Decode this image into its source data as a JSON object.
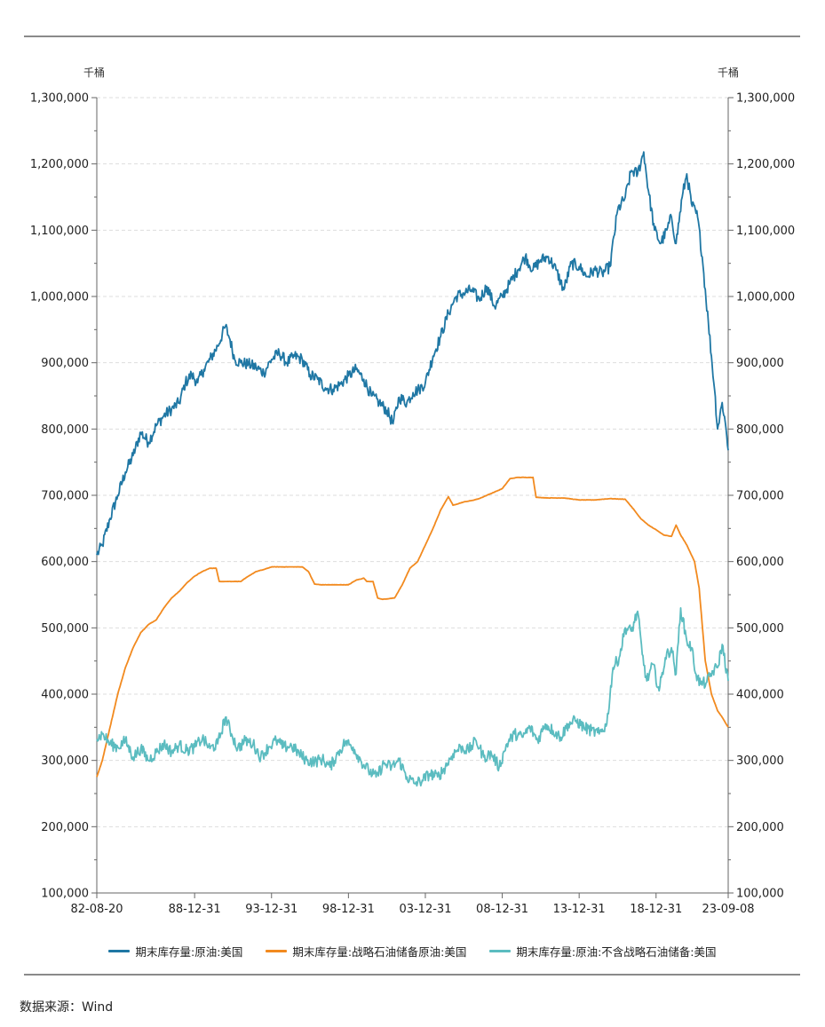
{
  "source_label": "数据来源：Wind",
  "colors": {
    "crude_total": "#1f77a4",
    "spr": "#f28a1f",
    "ex_spr": "#5bbcc0",
    "grid": "#dddddd",
    "axis": "#666666"
  },
  "chart_data": {
    "type": "line",
    "title": "",
    "left_unit": "千桶",
    "right_unit": "千桶",
    "ylim": [
      100000,
      1300000
    ],
    "y_ticks": [
      100000,
      200000,
      300000,
      400000,
      500000,
      600000,
      700000,
      800000,
      900000,
      1000000,
      1100000,
      1200000,
      1300000
    ],
    "y_tick_labels": [
      "100,000",
      "200,000",
      "300,000",
      "400,000",
      "500,000",
      "600,000",
      "700,000",
      "800,000",
      "900,000",
      "1,000,000",
      "1,100,000",
      "1,200,000",
      "1,300,000"
    ],
    "x_range": [
      1982.64,
      2023.69
    ],
    "x_ticks": [
      {
        "label": "82-08-20",
        "year": 1982.64
      },
      {
        "label": "88-12-31",
        "year": 1989.0
      },
      {
        "label": "93-12-31",
        "year": 1994.0
      },
      {
        "label": "98-12-31",
        "year": 1999.0
      },
      {
        "label": "03-12-31",
        "year": 2004.0
      },
      {
        "label": "08-12-31",
        "year": 2009.0
      },
      {
        "label": "13-12-31",
        "year": 2014.0
      },
      {
        "label": "18-12-31",
        "year": 2019.0
      },
      {
        "label": "23-09-08",
        "year": 2023.69
      }
    ],
    "grid": true,
    "legend_position": "bottom",
    "series": [
      {
        "name": "期末库存量:原油:美国",
        "color": "#1f77a4",
        "points": [
          [
            1982.64,
            610000
          ],
          [
            1983.0,
            625000
          ],
          [
            1983.5,
            665000
          ],
          [
            1984.0,
            700000
          ],
          [
            1984.5,
            735000
          ],
          [
            1985.0,
            760000
          ],
          [
            1985.5,
            795000
          ],
          [
            1986.0,
            780000
          ],
          [
            1986.5,
            805000
          ],
          [
            1987.0,
            820000
          ],
          [
            1987.5,
            830000
          ],
          [
            1988.0,
            840000
          ],
          [
            1988.4,
            870000
          ],
          [
            1988.8,
            882000
          ],
          [
            1989.2,
            870000
          ],
          [
            1989.6,
            890000
          ],
          [
            1990.0,
            905000
          ],
          [
            1990.5,
            925000
          ],
          [
            1991.0,
            955000
          ],
          [
            1991.3,
            935000
          ],
          [
            1991.6,
            905000
          ],
          [
            1992.0,
            900000
          ],
          [
            1992.5,
            898000
          ],
          [
            1993.0,
            893000
          ],
          [
            1993.5,
            885000
          ],
          [
            1994.0,
            905000
          ],
          [
            1994.5,
            915000
          ],
          [
            1995.0,
            900000
          ],
          [
            1995.5,
            910000
          ],
          [
            1996.0,
            905000
          ],
          [
            1996.5,
            882000
          ],
          [
            1997.0,
            875000
          ],
          [
            1997.5,
            862000
          ],
          [
            1998.0,
            860000
          ],
          [
            1998.5,
            868000
          ],
          [
            1999.0,
            880000
          ],
          [
            1999.5,
            890000
          ],
          [
            2000.0,
            875000
          ],
          [
            2000.5,
            850000
          ],
          [
            2001.0,
            840000
          ],
          [
            2001.5,
            828000
          ],
          [
            2001.9,
            808000
          ],
          [
            2002.3,
            848000
          ],
          [
            2002.8,
            840000
          ],
          [
            2003.2,
            855000
          ],
          [
            2003.6,
            860000
          ],
          [
            2004.0,
            870000
          ],
          [
            2004.5,
            910000
          ],
          [
            2005.0,
            940000
          ],
          [
            2005.5,
            975000
          ],
          [
            2006.0,
            1000000
          ],
          [
            2006.5,
            1005000
          ],
          [
            2007.0,
            1010000
          ],
          [
            2007.5,
            995000
          ],
          [
            2008.0,
            1015000
          ],
          [
            2008.5,
            985000
          ],
          [
            2009.0,
            1000000
          ],
          [
            2009.5,
            1020000
          ],
          [
            2010.0,
            1040000
          ],
          [
            2010.5,
            1060000
          ],
          [
            2011.0,
            1040000
          ],
          [
            2011.5,
            1055000
          ],
          [
            2012.0,
            1060000
          ],
          [
            2012.5,
            1040000
          ],
          [
            2013.0,
            1010000
          ],
          [
            2013.5,
            1050000
          ],
          [
            2014.0,
            1045000
          ],
          [
            2014.5,
            1030000
          ],
          [
            2015.0,
            1040000
          ],
          [
            2015.5,
            1035000
          ],
          [
            2016.0,
            1045000
          ],
          [
            2016.5,
            1130000
          ],
          [
            2017.0,
            1150000
          ],
          [
            2017.4,
            1190000
          ],
          [
            2017.8,
            1185000
          ],
          [
            2018.2,
            1218000
          ],
          [
            2018.5,
            1160000
          ],
          [
            2018.9,
            1100000
          ],
          [
            2019.3,
            1080000
          ],
          [
            2019.7,
            1100000
          ],
          [
            2020.0,
            1120000
          ],
          [
            2020.3,
            1080000
          ],
          [
            2020.7,
            1150000
          ],
          [
            2021.0,
            1185000
          ],
          [
            2021.3,
            1140000
          ],
          [
            2021.7,
            1120000
          ],
          [
            2022.0,
            1060000
          ],
          [
            2022.4,
            960000
          ],
          [
            2022.8,
            860000
          ],
          [
            2023.0,
            800000
          ],
          [
            2023.3,
            840000
          ],
          [
            2023.5,
            810000
          ],
          [
            2023.69,
            768000
          ]
        ]
      },
      {
        "name": "期末库存量:战略石油储备原油:美国",
        "color": "#f28a1f",
        "points": [
          [
            1982.64,
            275000
          ],
          [
            1983.0,
            300000
          ],
          [
            1983.5,
            350000
          ],
          [
            1984.0,
            400000
          ],
          [
            1984.5,
            440000
          ],
          [
            1985.0,
            470000
          ],
          [
            1985.5,
            493000
          ],
          [
            1986.0,
            505000
          ],
          [
            1986.5,
            512000
          ],
          [
            1987.0,
            530000
          ],
          [
            1987.5,
            545000
          ],
          [
            1988.0,
            555000
          ],
          [
            1988.5,
            568000
          ],
          [
            1989.0,
            578000
          ],
          [
            1989.5,
            585000
          ],
          [
            1990.0,
            590000
          ],
          [
            1990.4,
            590000
          ],
          [
            1990.6,
            570000
          ],
          [
            1991.0,
            570000
          ],
          [
            1992.0,
            570000
          ],
          [
            1992.5,
            578000
          ],
          [
            1993.0,
            585000
          ],
          [
            1993.5,
            588000
          ],
          [
            1994.0,
            592000
          ],
          [
            1995.0,
            592000
          ],
          [
            1996.0,
            592000
          ],
          [
            1996.4,
            585000
          ],
          [
            1996.8,
            566000
          ],
          [
            1997.2,
            565000
          ],
          [
            1998.0,
            565000
          ],
          [
            1999.0,
            565000
          ],
          [
            1999.5,
            572000
          ],
          [
            2000.0,
            575000
          ],
          [
            2000.2,
            570000
          ],
          [
            2000.6,
            570000
          ],
          [
            2000.9,
            545000
          ],
          [
            2001.2,
            543000
          ],
          [
            2002.0,
            545000
          ],
          [
            2002.5,
            565000
          ],
          [
            2003.0,
            590000
          ],
          [
            2003.5,
            600000
          ],
          [
            2004.0,
            625000
          ],
          [
            2004.5,
            650000
          ],
          [
            2005.0,
            678000
          ],
          [
            2005.5,
            698000
          ],
          [
            2005.8,
            685000
          ],
          [
            2006.5,
            690000
          ],
          [
            2007.0,
            692000
          ],
          [
            2007.5,
            695000
          ],
          [
            2008.0,
            700000
          ],
          [
            2008.5,
            705000
          ],
          [
            2009.0,
            710000
          ],
          [
            2009.5,
            725000
          ],
          [
            2010.0,
            727000
          ],
          [
            2011.0,
            727000
          ],
          [
            2011.2,
            697000
          ],
          [
            2012.0,
            696000
          ],
          [
            2013.0,
            696000
          ],
          [
            2014.0,
            693000
          ],
          [
            2015.0,
            693000
          ],
          [
            2016.0,
            695000
          ],
          [
            2017.0,
            694000
          ],
          [
            2017.5,
            680000
          ],
          [
            2018.0,
            665000
          ],
          [
            2018.5,
            655000
          ],
          [
            2019.0,
            648000
          ],
          [
            2019.5,
            640000
          ],
          [
            2020.0,
            638000
          ],
          [
            2020.3,
            655000
          ],
          [
            2020.6,
            640000
          ],
          [
            2021.0,
            625000
          ],
          [
            2021.5,
            600000
          ],
          [
            2021.8,
            560000
          ],
          [
            2022.2,
            450000
          ],
          [
            2022.6,
            400000
          ],
          [
            2023.0,
            375000
          ],
          [
            2023.3,
            365000
          ],
          [
            2023.69,
            350000
          ]
        ]
      },
      {
        "name": "期末库存量:原油:不含战略石油储备:美国",
        "color": "#5bbcc0",
        "points": [
          [
            1982.64,
            332000
          ],
          [
            1983.0,
            340000
          ],
          [
            1983.5,
            325000
          ],
          [
            1984.0,
            320000
          ],
          [
            1984.5,
            330000
          ],
          [
            1985.0,
            305000
          ],
          [
            1985.5,
            318000
          ],
          [
            1986.0,
            300000
          ],
          [
            1986.5,
            312000
          ],
          [
            1987.0,
            325000
          ],
          [
            1987.5,
            313000
          ],
          [
            1988.0,
            323000
          ],
          [
            1988.5,
            315000
          ],
          [
            1989.0,
            320000
          ],
          [
            1989.5,
            333000
          ],
          [
            1990.0,
            318000
          ],
          [
            1990.5,
            325000
          ],
          [
            1991.0,
            365000
          ],
          [
            1991.4,
            340000
          ],
          [
            1991.8,
            318000
          ],
          [
            1992.3,
            330000
          ],
          [
            1992.8,
            325000
          ],
          [
            1993.3,
            305000
          ],
          [
            1993.8,
            320000
          ],
          [
            1994.3,
            330000
          ],
          [
            1994.8,
            320000
          ],
          [
            1995.3,
            322000
          ],
          [
            1995.8,
            310000
          ],
          [
            1996.3,
            300000
          ],
          [
            1996.8,
            298000
          ],
          [
            1997.3,
            302000
          ],
          [
            1997.8,
            290000
          ],
          [
            1998.3,
            310000
          ],
          [
            1998.8,
            328000
          ],
          [
            1999.3,
            320000
          ],
          [
            1999.8,
            300000
          ],
          [
            2000.3,
            285000
          ],
          [
            2000.8,
            275000
          ],
          [
            2001.3,
            295000
          ],
          [
            2001.8,
            290000
          ],
          [
            2002.3,
            300000
          ],
          [
            2002.8,
            275000
          ],
          [
            2003.3,
            265000
          ],
          [
            2003.8,
            270000
          ],
          [
            2004.3,
            280000
          ],
          [
            2004.8,
            275000
          ],
          [
            2005.3,
            290000
          ],
          [
            2005.8,
            310000
          ],
          [
            2006.3,
            320000
          ],
          [
            2006.8,
            315000
          ],
          [
            2007.3,
            330000
          ],
          [
            2007.8,
            305000
          ],
          [
            2008.3,
            310000
          ],
          [
            2008.8,
            290000
          ],
          [
            2009.3,
            325000
          ],
          [
            2009.8,
            340000
          ],
          [
            2010.3,
            335000
          ],
          [
            2010.8,
            350000
          ],
          [
            2011.3,
            330000
          ],
          [
            2011.8,
            355000
          ],
          [
            2012.3,
            345000
          ],
          [
            2012.8,
            335000
          ],
          [
            2013.3,
            355000
          ],
          [
            2013.8,
            360000
          ],
          [
            2014.3,
            350000
          ],
          [
            2014.8,
            345000
          ],
          [
            2015.3,
            340000
          ],
          [
            2015.8,
            355000
          ],
          [
            2016.2,
            440000
          ],
          [
            2016.6,
            455000
          ],
          [
            2017.0,
            500000
          ],
          [
            2017.4,
            495000
          ],
          [
            2017.8,
            525000
          ],
          [
            2018.1,
            460000
          ],
          [
            2018.4,
            420000
          ],
          [
            2018.8,
            445000
          ],
          [
            2019.2,
            405000
          ],
          [
            2019.6,
            455000
          ],
          [
            2020.0,
            470000
          ],
          [
            2020.3,
            430000
          ],
          [
            2020.6,
            530000
          ],
          [
            2021.0,
            480000
          ],
          [
            2021.3,
            470000
          ],
          [
            2021.6,
            430000
          ],
          [
            2021.9,
            415000
          ],
          [
            2022.3,
            418000
          ],
          [
            2022.7,
            435000
          ],
          [
            2023.0,
            440000
          ],
          [
            2023.3,
            475000
          ],
          [
            2023.69,
            420000
          ]
        ]
      }
    ]
  }
}
